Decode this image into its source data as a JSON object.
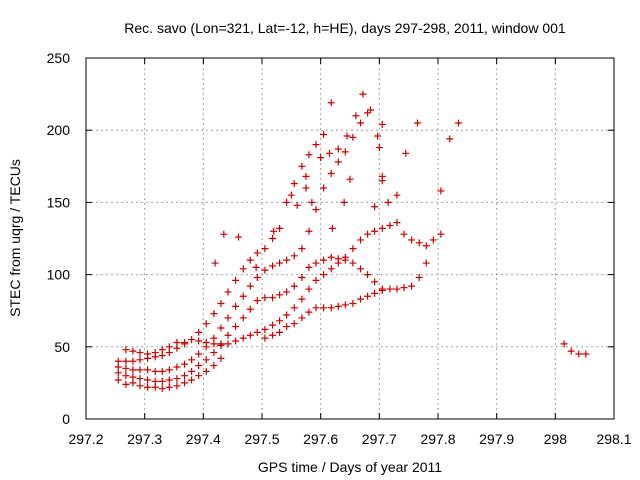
{
  "chart_data": {
    "type": "scatter",
    "title": "Rec. savo (Lon=321, Lat=-12, h=HE), days 297-298, 2011, window 001",
    "xlabel": "GPS time / Days of year 2011",
    "ylabel": "STEC from uqrg / TECUs",
    "xlim": [
      297.2,
      298.1
    ],
    "ylim": [
      0,
      250
    ],
    "xticks": [
      297.2,
      297.3,
      297.4,
      297.5,
      297.6,
      297.7,
      297.8,
      297.9,
      298,
      298.1
    ],
    "xtick_labels": [
      "297.2",
      "297.3",
      "297.4",
      "297.5",
      "297.6",
      "297.7",
      "297.8",
      "297.9",
      "298",
      "298.1"
    ],
    "yticks": [
      0,
      50,
      100,
      150,
      200,
      250
    ],
    "ytick_labels": [
      "0",
      "50",
      "100",
      "150",
      "200",
      "250"
    ],
    "grid": true,
    "marker": "+",
    "color": "#cc0000",
    "series": [
      {
        "points": [
          [
            297.255,
            27
          ],
          [
            297.268,
            24
          ],
          [
            297.28,
            25
          ],
          [
            297.292,
            23
          ],
          [
            297.305,
            22
          ],
          [
            297.318,
            22
          ],
          [
            297.33,
            21
          ],
          [
            297.342,
            22
          ],
          [
            297.355,
            23
          ],
          [
            297.368,
            25
          ],
          [
            297.38,
            27
          ],
          [
            297.392,
            30
          ],
          [
            297.405,
            33
          ],
          [
            297.418,
            37
          ],
          [
            297.43,
            42
          ],
          [
            297.255,
            32
          ],
          [
            297.268,
            30
          ],
          [
            297.28,
            29
          ],
          [
            297.292,
            28
          ],
          [
            297.305,
            27
          ],
          [
            297.318,
            26
          ],
          [
            297.33,
            26
          ],
          [
            297.342,
            27
          ],
          [
            297.355,
            28
          ],
          [
            297.368,
            30
          ],
          [
            297.38,
            33
          ],
          [
            297.392,
            37
          ],
          [
            297.405,
            41
          ],
          [
            297.418,
            46
          ],
          [
            297.43,
            52
          ],
          [
            297.442,
            58
          ],
          [
            297.455,
            64
          ],
          [
            297.468,
            70
          ],
          [
            297.48,
            76
          ],
          [
            297.492,
            82
          ],
          [
            297.505,
            84
          ],
          [
            297.518,
            84
          ],
          [
            297.53,
            86
          ],
          [
            297.542,
            88
          ],
          [
            297.555,
            92
          ],
          [
            297.568,
            98
          ],
          [
            297.58,
            105
          ],
          [
            297.592,
            108
          ],
          [
            297.605,
            110
          ],
          [
            297.618,
            112
          ],
          [
            297.63,
            111
          ],
          [
            297.642,
            110
          ],
          [
            297.655,
            108
          ],
          [
            297.668,
            104
          ],
          [
            297.68,
            100
          ],
          [
            297.692,
            95
          ],
          [
            297.705,
            90
          ],
          [
            297.255,
            36
          ],
          [
            297.268,
            35
          ],
          [
            297.28,
            34
          ],
          [
            297.292,
            34
          ],
          [
            297.305,
            34
          ],
          [
            297.318,
            33
          ],
          [
            297.33,
            33
          ],
          [
            297.342,
            34
          ],
          [
            297.355,
            36
          ],
          [
            297.368,
            38
          ],
          [
            297.38,
            41
          ],
          [
            297.392,
            45
          ],
          [
            297.405,
            50
          ],
          [
            297.418,
            56
          ],
          [
            297.43,
            63
          ],
          [
            297.442,
            70
          ],
          [
            297.455,
            78
          ],
          [
            297.468,
            85
          ],
          [
            297.48,
            92
          ],
          [
            297.492,
            98
          ],
          [
            297.505,
            103
          ],
          [
            297.518,
            106
          ],
          [
            297.53,
            108
          ],
          [
            297.542,
            110
          ],
          [
            297.555,
            113
          ],
          [
            297.568,
            118
          ],
          [
            297.58,
            130
          ],
          [
            297.592,
            145
          ],
          [
            297.605,
            160
          ],
          [
            297.618,
            170
          ],
          [
            297.63,
            178
          ],
          [
            297.642,
            185
          ],
          [
            297.655,
            195
          ],
          [
            297.668,
            205
          ],
          [
            297.68,
            212
          ],
          [
            297.255,
            40
          ],
          [
            297.268,
            40
          ],
          [
            297.28,
            40
          ],
          [
            297.292,
            41
          ],
          [
            297.305,
            42
          ],
          [
            297.318,
            43
          ],
          [
            297.33,
            44
          ],
          [
            297.342,
            46
          ],
          [
            297.355,
            49
          ],
          [
            297.368,
            52
          ],
          [
            297.38,
            55
          ],
          [
            297.392,
            60
          ],
          [
            297.405,
            66
          ],
          [
            297.418,
            73
          ],
          [
            297.43,
            80
          ],
          [
            297.442,
            88
          ],
          [
            297.455,
            96
          ],
          [
            297.468,
            104
          ],
          [
            297.48,
            110
          ],
          [
            297.492,
            115
          ],
          [
            297.505,
            118
          ],
          [
            297.518,
            125
          ],
          [
            297.53,
            132
          ],
          [
            297.542,
            150
          ],
          [
            297.555,
            163
          ],
          [
            297.568,
            175
          ],
          [
            297.58,
            183
          ],
          [
            297.592,
            190
          ],
          [
            297.605,
            197
          ],
          [
            297.618,
            219
          ],
          [
            297.268,
            48
          ],
          [
            297.28,
            47
          ],
          [
            297.292,
            46
          ],
          [
            297.305,
            45
          ],
          [
            297.318,
            46
          ],
          [
            297.33,
            48
          ],
          [
            297.342,
            50
          ],
          [
            297.355,
            53
          ],
          [
            297.368,
            53
          ],
          [
            297.392,
            54
          ],
          [
            297.405,
            53
          ],
          [
            297.418,
            52
          ],
          [
            297.43,
            51
          ],
          [
            297.442,
            52
          ],
          [
            297.455,
            54
          ],
          [
            297.468,
            56
          ],
          [
            297.48,
            58
          ],
          [
            297.492,
            60
          ],
          [
            297.505,
            62
          ],
          [
            297.518,
            65
          ],
          [
            297.53,
            68
          ],
          [
            297.542,
            72
          ],
          [
            297.555,
            77
          ],
          [
            297.568,
            83
          ],
          [
            297.58,
            90
          ],
          [
            297.592,
            96
          ],
          [
            297.605,
            100
          ],
          [
            297.618,
            104
          ],
          [
            297.63,
            108
          ],
          [
            297.642,
            112
          ],
          [
            297.655,
            118
          ],
          [
            297.668,
            124
          ],
          [
            297.68,
            128
          ],
          [
            297.692,
            130
          ],
          [
            297.705,
            132
          ],
          [
            297.718,
            134
          ],
          [
            297.73,
            136
          ],
          [
            297.742,
            128
          ],
          [
            297.755,
            124
          ],
          [
            297.768,
            122
          ],
          [
            297.78,
            120
          ],
          [
            297.792,
            124
          ],
          [
            297.805,
            128
          ],
          [
            297.505,
            56
          ],
          [
            297.518,
            58
          ],
          [
            297.53,
            60
          ],
          [
            297.542,
            64
          ],
          [
            297.555,
            66
          ],
          [
            297.568,
            70
          ],
          [
            297.58,
            74
          ],
          [
            297.592,
            77
          ],
          [
            297.605,
            77
          ],
          [
            297.618,
            77
          ],
          [
            297.63,
            78
          ],
          [
            297.642,
            79
          ],
          [
            297.655,
            80
          ],
          [
            297.668,
            83
          ],
          [
            297.68,
            85
          ],
          [
            297.692,
            87
          ],
          [
            297.705,
            89
          ],
          [
            297.718,
            90
          ],
          [
            297.73,
            90
          ],
          [
            297.742,
            91
          ],
          [
            297.755,
            92
          ],
          [
            297.768,
            98
          ],
          [
            297.78,
            108
          ],
          [
            297.42,
            108
          ],
          [
            297.435,
            128
          ],
          [
            297.46,
            126
          ],
          [
            297.49,
            105
          ],
          [
            297.52,
            130
          ],
          [
            297.55,
            155
          ],
          [
            297.575,
            168
          ],
          [
            297.6,
            181
          ],
          [
            297.615,
            184
          ],
          [
            297.63,
            187
          ],
          [
            297.645,
            196
          ],
          [
            297.66,
            210
          ],
          [
            297.672,
            225
          ],
          [
            297.685,
            214
          ],
          [
            297.697,
            196
          ],
          [
            297.705,
            204
          ],
          [
            297.705,
            168
          ],
          [
            297.705,
            165
          ],
          [
            297.692,
            147
          ],
          [
            297.7,
            188
          ],
          [
            297.715,
            150
          ],
          [
            297.73,
            155
          ],
          [
            297.745,
            184
          ],
          [
            297.765,
            205
          ],
          [
            297.805,
            158
          ],
          [
            297.82,
            194
          ],
          [
            297.835,
            205
          ],
          [
            297.56,
            148
          ],
          [
            297.585,
            150
          ],
          [
            297.575,
            160
          ],
          [
            297.64,
            150
          ],
          [
            297.65,
            166
          ],
          [
            297.62,
            132
          ],
          [
            298.015,
            52
          ],
          [
            298.027,
            47
          ],
          [
            298.04,
            45
          ],
          [
            298.052,
            45
          ]
        ]
      }
    ]
  }
}
